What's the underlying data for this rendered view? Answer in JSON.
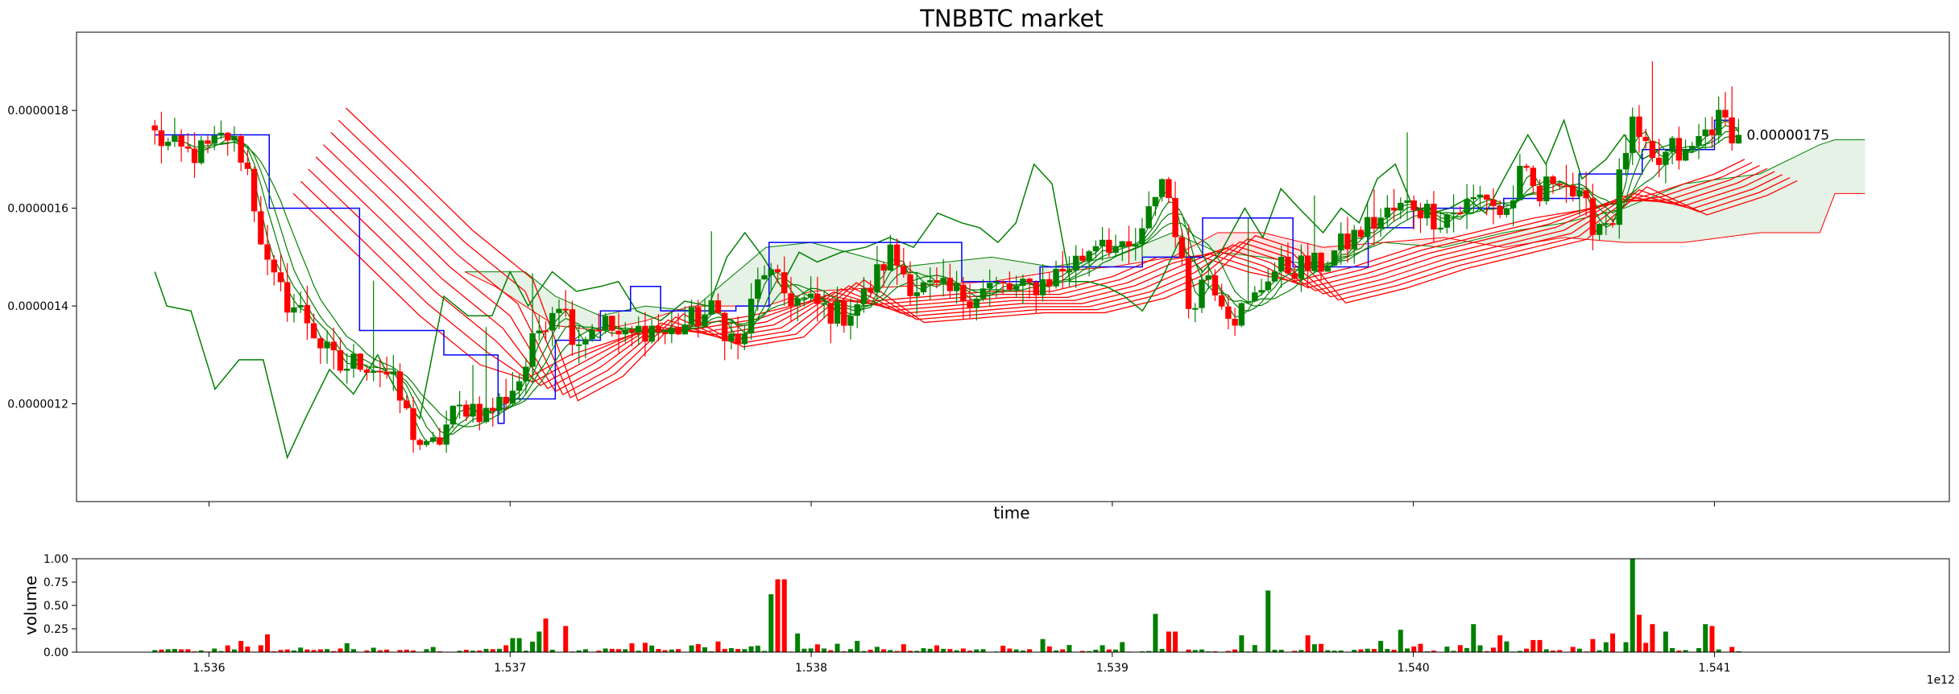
{
  "chart_data": [
    {
      "type": "candlestick",
      "title": "TNBBTC market",
      "xlabel": "time",
      "ylabel": "",
      "xlim": [
        1535560000000,
        1541780000000
      ],
      "ylim": [
        1e-06,
        1.96e-06
      ],
      "y_tick_labels": [
        "0.0000012",
        "0.0000014",
        "0.0000016",
        "0.0000018"
      ],
      "y_tick_values": [
        1.2e-06,
        1.4e-06,
        1.6e-06,
        1.8e-06
      ],
      "x_tick_labels": [
        "1.536",
        "1.537",
        "1.538",
        "1.539",
        "1.540",
        "1.541"
      ],
      "x_tick_values": [
        1536000000000.0,
        1537000000000.0,
        1538000000000.0,
        1539000000000.0,
        1540000000000.0,
        1541000000000.0
      ],
      "x_offset_label": "1e12",
      "last_price_label": "0.00000175",
      "last_price": 1.75e-06,
      "colors": {
        "up": "#008000",
        "down": "#ff0000",
        "donchian": "#0000ff",
        "fast_ma": "#008000",
        "slow_ma": "#ff0000",
        "cloud_bull": "#008000",
        "cloud_bear": "#ff0000"
      },
      "price_path": {
        "x": [
          1535820000000,
          1535880000000,
          1535940000000,
          1536000000000,
          1536060000000,
          1536120000000,
          1536160000000,
          1536200000000,
          1536260000000,
          1536320000000,
          1536380000000,
          1536440000000,
          1536500000000,
          1536580000000,
          1536620000000,
          1536680000000,
          1536720000000,
          1536760000000,
          1536800000000,
          1536860000000,
          1536920000000,
          1536980000000,
          1537040000000,
          1537100000000,
          1537160000000,
          1537220000000,
          1537300000000,
          1537380000000,
          1537460000000,
          1537520000000,
          1537600000000,
          1537680000000,
          1537760000000,
          1537840000000,
          1537900000000,
          1537960000000,
          1538020000000,
          1538100000000,
          1538180000000,
          1538260000000,
          1538340000000,
          1538420000000,
          1538500000000,
          1538600000000,
          1538700000000,
          1538800000000,
          1538900000000,
          1538960000000,
          1539040000000,
          1539100000000,
          1539160000000,
          1539200000000,
          1539250000000,
          1539320000000,
          1539400000000,
          1539460000000,
          1539520000000,
          1539600000000,
          1539680000000,
          1539760000000,
          1539840000000,
          1539920000000,
          1540000000000,
          1540080000000,
          1540160000000,
          1540240000000,
          1540300000000,
          1540360000000,
          1540420000000,
          1540480000000,
          1540540000000,
          1540600000000,
          1540660000000,
          1540720000000,
          1540760000000,
          1540800000000,
          1540860000000,
          1540900000000,
          1540960000000,
          1541000000000,
          1541040000000,
          1541080000000
        ],
        "y": [
          1.75e-06,
          1.72e-06,
          1.71e-06,
          1.72e-06,
          1.75e-06,
          1.7e-06,
          1.58e-06,
          1.46e-06,
          1.41e-06,
          1.38e-06,
          1.31e-06,
          1.27e-06,
          1.29e-06,
          1.27e-06,
          1.23e-06,
          1.14e-06,
          1.1e-06,
          1.12e-06,
          1.17e-06,
          1.2e-06,
          1.18e-06,
          1.21e-06,
          1.26e-06,
          1.36e-06,
          1.42e-06,
          1.33e-06,
          1.37e-06,
          1.33e-06,
          1.36e-06,
          1.34e-06,
          1.37e-06,
          1.39e-06,
          1.31e-06,
          1.48e-06,
          1.43e-06,
          1.41e-06,
          1.4e-06,
          1.38e-06,
          1.42e-06,
          1.51e-06,
          1.44e-06,
          1.43e-06,
          1.42e-06,
          1.44e-06,
          1.43e-06,
          1.46e-06,
          1.5e-06,
          1.55e-06,
          1.5e-06,
          1.54e-06,
          1.67e-06,
          1.6e-06,
          1.4e-06,
          1.47e-06,
          1.38e-06,
          1.4e-06,
          1.47e-06,
          1.48e-06,
          1.48e-06,
          1.52e-06,
          1.56e-06,
          1.59e-06,
          1.61e-06,
          1.58e-06,
          1.6e-06,
          1.63e-06,
          1.58e-06,
          1.67e-06,
          1.62e-06,
          1.68e-06,
          1.62e-06,
          1.57e-06,
          1.58e-06,
          1.77e-06,
          1.72e-06,
          1.68e-06,
          1.72e-06,
          1.7e-06,
          1.75e-06,
          1.78e-06,
          1.77e-06,
          1.75e-06
        ]
      },
      "donchian": {
        "x": [
          1535820000000,
          1536200000000,
          1536420000000,
          1536500000000,
          1536780000000,
          1536960000000,
          1536980000000,
          1537150000000,
          1537300000000,
          1537400000000,
          1537500000000,
          1537580000000,
          1537750000000,
          1537860000000,
          1538200000000,
          1538500000000,
          1538760000000,
          1539100000000,
          1539300000000,
          1539600000000,
          1539850000000,
          1540000000000,
          1540300000000,
          1540550000000,
          1540760000000,
          1541000000000,
          1541060000000
        ],
        "y": [
          1.75e-06,
          1.6e-06,
          1.6e-06,
          1.35e-06,
          1.3e-06,
          1.16e-06,
          1.21e-06,
          1.33e-06,
          1.39e-06,
          1.44e-06,
          1.39e-06,
          1.39e-06,
          1.4e-06,
          1.53e-06,
          1.53e-06,
          1.45e-06,
          1.48e-06,
          1.5e-06,
          1.58e-06,
          1.48e-06,
          1.56e-06,
          1.6e-06,
          1.62e-06,
          1.67e-06,
          1.72e-06,
          1.78e-06,
          1.75e-06
        ]
      },
      "lagging_line": {
        "x": [
          1535820000000,
          1535860000000,
          1535940000000,
          1536020000000,
          1536100000000,
          1536180000000,
          1536260000000,
          1536320000000,
          1536400000000,
          1536480000000,
          1536560000000,
          1536620000000,
          1536700000000,
          1536780000000,
          1536860000000,
          1536940000000,
          1537000000000,
          1537060000000,
          1537140000000,
          1537220000000,
          1537300000000,
          1537360000000,
          1537420000000,
          1537500000000,
          1537580000000,
          1537660000000,
          1537720000000,
          1537780000000,
          1537840000000,
          1537900000000,
          1537960000000,
          1538020000000,
          1538100000000,
          1538180000000,
          1538260000000,
          1538340000000,
          1538420000000,
          1538500000000,
          1538560000000,
          1538620000000,
          1538680000000,
          1538740000000,
          1538800000000,
          1538860000000,
          1538920000000,
          1538980000000,
          1539040000000,
          1539100000000,
          1539160000000,
          1539220000000,
          1539300000000,
          1539360000000,
          1539440000000,
          1539500000000,
          1539560000000,
          1539620000000,
          1539700000000,
          1539760000000,
          1539820000000,
          1539880000000,
          1539940000000,
          1540000000000,
          1540060000000,
          1540120000000,
          1540180000000,
          1540240000000,
          1540300000000,
          1540380000000,
          1540440000000,
          1540500000000,
          1540560000000,
          1540640000000,
          1540700000000,
          1540760000000,
          1540820000000
        ],
        "y": [
          1.47e-06,
          1.4e-06,
          1.39e-06,
          1.23e-06,
          1.29e-06,
          1.29e-06,
          1.09e-06,
          1.17e-06,
          1.27e-06,
          1.22e-06,
          1.3e-06,
          1.23e-06,
          1.17e-06,
          1.42e-06,
          1.38e-06,
          1.38e-06,
          1.47e-06,
          1.4e-06,
          1.47e-06,
          1.43e-06,
          1.44e-06,
          1.45e-06,
          1.39e-06,
          1.37e-06,
          1.41e-06,
          1.4e-06,
          1.5e-06,
          1.55e-06,
          1.5e-06,
          1.44e-06,
          1.51e-06,
          1.49e-06,
          1.51e-06,
          1.52e-06,
          1.54e-06,
          1.52e-06,
          1.59e-06,
          1.57e-06,
          1.56e-06,
          1.53e-06,
          1.57e-06,
          1.69e-06,
          1.65e-06,
          1.45e-06,
          1.45e-06,
          1.44e-06,
          1.42e-06,
          1.39e-06,
          1.45e-06,
          1.53e-06,
          1.47e-06,
          1.51e-06,
          1.6e-06,
          1.54e-06,
          1.64e-06,
          1.6e-06,
          1.55e-06,
          1.6e-06,
          1.57e-06,
          1.66e-06,
          1.69e-06,
          1.6e-06,
          1.59e-06,
          1.6e-06,
          1.62e-06,
          1.59e-06,
          1.66e-06,
          1.75e-06,
          1.69e-06,
          1.78e-06,
          1.66e-06,
          1.7e-06,
          1.75e-06,
          1.7e-06,
          1.72e-06
        ]
      },
      "fast_ma_offsets": [
        0.0,
        0.25,
        0.5,
        0.75
      ],
      "slow_ma": {
        "x": [
          1536280000000,
          1536500000000,
          1536700000000,
          1536900000000,
          1537050000000,
          1537200000000,
          1537400000000,
          1537600000000,
          1537800000000,
          1538000000000,
          1538200000000,
          1538400000000,
          1538600000000,
          1538800000000,
          1539000000000,
          1539150000000,
          1539300000000,
          1539450000000,
          1539600000000,
          1539800000000,
          1540000000000,
          1540200000000,
          1540400000000,
          1540600000000,
          1540800000000,
          1541000000000,
          1541100000000
        ],
        "y": [
          1.63e-06,
          1.5e-06,
          1.38e-06,
          1.28e-06,
          1.25e-06,
          1.3e-06,
          1.34e-06,
          1.36e-06,
          1.38e-06,
          1.41e-06,
          1.41e-06,
          1.42e-06,
          1.43e-06,
          1.43e-06,
          1.46e-06,
          1.5e-06,
          1.5e-06,
          1.47e-06,
          1.45e-06,
          1.48e-06,
          1.52e-06,
          1.55e-06,
          1.58e-06,
          1.6e-06,
          1.63e-06,
          1.67e-06,
          1.7e-06
        ]
      },
      "cloud": {
        "x": [
          1536850000000,
          1536950000000,
          1537050000000,
          1537150000000,
          1537300000000,
          1537450000000,
          1537600000000,
          1537850000000,
          1538000000000,
          1538300000000,
          1538600000000,
          1538800000000,
          1539000000000,
          1539200000000,
          1539350000000,
          1539500000000,
          1539700000000,
          1539900000000,
          1540100000000,
          1540300000000,
          1540500000000,
          1540700000000,
          1540900000000,
          1541150000000,
          1541350000000,
          1541400000000,
          1541500000000
        ],
        "span_a": [
          1.47e-06,
          1.47e-06,
          1.47e-06,
          1.42e-06,
          1.38e-06,
          1.4e-06,
          1.39e-06,
          1.52e-06,
          1.53e-06,
          1.48e-06,
          1.5e-06,
          1.48e-06,
          1.5e-06,
          1.55e-06,
          1.51e-06,
          1.5e-06,
          1.48e-06,
          1.53e-06,
          1.52e-06,
          1.55e-06,
          1.57e-06,
          1.6e-06,
          1.65e-06,
          1.67e-06,
          1.73e-06,
          1.74e-06,
          1.74e-06
        ],
        "span_b": [
          1.47e-06,
          1.44e-06,
          1.4e-06,
          1.36e-06,
          1.35e-06,
          1.37e-06,
          1.4e-06,
          1.4e-06,
          1.43e-06,
          1.44e-06,
          1.45e-06,
          1.47e-06,
          1.48e-06,
          1.5e-06,
          1.55e-06,
          1.55e-06,
          1.52e-06,
          1.53e-06,
          1.54e-06,
          1.52e-06,
          1.54e-06,
          1.53e-06,
          1.53e-06,
          1.55e-06,
          1.55e-06,
          1.63e-06,
          1.63e-06
        ]
      }
    },
    {
      "type": "bar",
      "title": "",
      "xlabel": "",
      "ylabel": "volume",
      "xlim": [
        1535560000000,
        1541780000000
      ],
      "ylim": [
        0,
        1.0
      ],
      "y_tick_labels": [
        "0.00",
        "0.25",
        "0.50",
        "0.75",
        "1.00"
      ],
      "y_tick_values": [
        0.0,
        0.25,
        0.5,
        0.75,
        1.0
      ],
      "x_tick_labels": [
        "1.536",
        "1.537",
        "1.538",
        "1.539",
        "1.540",
        "1.541"
      ],
      "x_tick_values": [
        1536000000000.0,
        1537000000000.0,
        1538000000000.0,
        1539000000000.0,
        1540000000000.0,
        1541000000000.0
      ],
      "x_offset_label": "1e12",
      "spikes": [
        {
          "x": 1536100000000,
          "value": 0.12
        },
        {
          "x": 1536190000000,
          "value": 0.19
        },
        {
          "x": 1537020000000,
          "value": 0.15
        },
        {
          "x": 1537090000000,
          "value": 0.22
        },
        {
          "x": 1537120000000,
          "value": 0.36
        },
        {
          "x": 1537180000000,
          "value": 0.28
        },
        {
          "x": 1537450000000,
          "value": 0.1
        },
        {
          "x": 1537860000000,
          "value": 0.62
        },
        {
          "x": 1537900000000,
          "value": 0.78
        },
        {
          "x": 1537950000000,
          "value": 0.2
        },
        {
          "x": 1538150000000,
          "value": 0.12
        },
        {
          "x": 1538770000000,
          "value": 0.14
        },
        {
          "x": 1539150000000,
          "value": 0.41
        },
        {
          "x": 1539200000000,
          "value": 0.22
        },
        {
          "x": 1539430000000,
          "value": 0.18
        },
        {
          "x": 1539520000000,
          "value": 0.66
        },
        {
          "x": 1539650000000,
          "value": 0.18
        },
        {
          "x": 1539890000000,
          "value": 0.12
        },
        {
          "x": 1539950000000,
          "value": 0.24
        },
        {
          "x": 1540200000000,
          "value": 0.3
        },
        {
          "x": 1540280000000,
          "value": 0.18
        },
        {
          "x": 1540410000000,
          "value": 0.13
        },
        {
          "x": 1540600000000,
          "value": 0.14
        },
        {
          "x": 1540660000000,
          "value": 0.2
        },
        {
          "x": 1540720000000,
          "value": 1.0
        },
        {
          "x": 1540750000000,
          "value": 0.4
        },
        {
          "x": 1540800000000,
          "value": 0.3
        },
        {
          "x": 1540830000000,
          "value": 0.22
        },
        {
          "x": 1540980000000,
          "value": 0.3
        },
        {
          "x": 1541000000000,
          "value": 0.28
        }
      ]
    }
  ]
}
